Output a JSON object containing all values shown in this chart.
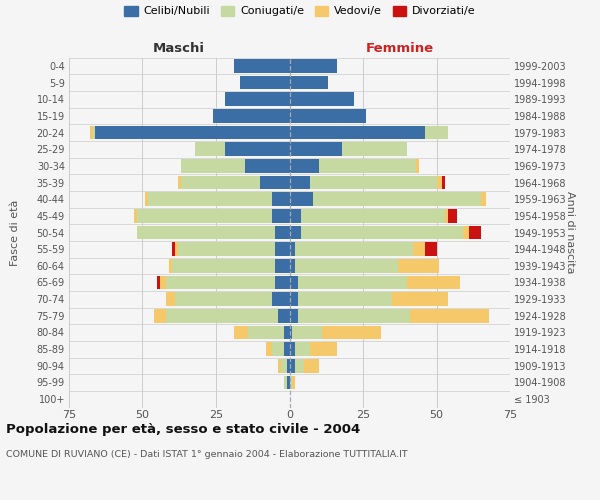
{
  "age_groups": [
    "100+",
    "95-99",
    "90-94",
    "85-89",
    "80-84",
    "75-79",
    "70-74",
    "65-69",
    "60-64",
    "55-59",
    "50-54",
    "45-49",
    "40-44",
    "35-39",
    "30-34",
    "25-29",
    "20-24",
    "15-19",
    "10-14",
    "5-9",
    "0-4"
  ],
  "birth_years": [
    "≤ 1903",
    "1904-1908",
    "1909-1913",
    "1914-1918",
    "1919-1923",
    "1924-1928",
    "1929-1933",
    "1934-1938",
    "1939-1943",
    "1944-1948",
    "1949-1953",
    "1954-1958",
    "1959-1963",
    "1964-1968",
    "1969-1973",
    "1974-1978",
    "1979-1983",
    "1984-1988",
    "1989-1993",
    "1994-1998",
    "1999-2003"
  ],
  "colors": {
    "celibi": "#3a6ea5",
    "coniugati": "#c5d9a0",
    "vedovi": "#f5c96a",
    "divorziati": "#cc1111"
  },
  "male": {
    "celibi": [
      0,
      1,
      1,
      2,
      2,
      4,
      6,
      5,
      5,
      5,
      5,
      6,
      6,
      10,
      15,
      22,
      66,
      26,
      22,
      17,
      19
    ],
    "coniugati": [
      0,
      1,
      2,
      4,
      12,
      38,
      33,
      37,
      35,
      33,
      47,
      46,
      42,
      27,
      22,
      10,
      1,
      0,
      0,
      0,
      0
    ],
    "vedovi": [
      0,
      0,
      1,
      2,
      5,
      4,
      3,
      2,
      1,
      1,
      0,
      1,
      1,
      1,
      0,
      0,
      1,
      0,
      0,
      0,
      0
    ],
    "divorziati": [
      0,
      0,
      0,
      0,
      0,
      0,
      0,
      1,
      0,
      1,
      0,
      0,
      0,
      0,
      0,
      0,
      0,
      0,
      0,
      0,
      0
    ]
  },
  "female": {
    "celibi": [
      0,
      0,
      2,
      2,
      1,
      3,
      3,
      3,
      2,
      2,
      4,
      4,
      8,
      7,
      10,
      18,
      46,
      26,
      22,
      13,
      16
    ],
    "coniugati": [
      0,
      1,
      3,
      5,
      10,
      38,
      32,
      37,
      35,
      40,
      55,
      49,
      57,
      43,
      33,
      22,
      8,
      0,
      0,
      0,
      0
    ],
    "vedovi": [
      0,
      1,
      5,
      9,
      20,
      27,
      19,
      18,
      14,
      4,
      2,
      1,
      2,
      2,
      1,
      0,
      0,
      0,
      0,
      0,
      0
    ],
    "divorziati": [
      0,
      0,
      0,
      0,
      0,
      0,
      0,
      0,
      0,
      4,
      4,
      3,
      0,
      1,
      0,
      0,
      0,
      0,
      0,
      0,
      0
    ]
  },
  "title": "Popolazione per età, sesso e stato civile - 2004",
  "subtitle": "COMUNE DI RUVIANO (CE) - Dati ISTAT 1° gennaio 2004 - Elaborazione TUTTITALIA.IT",
  "xlabel_left": "Maschi",
  "xlabel_right": "Femmine",
  "ylabel_left": "Fasce di età",
  "ylabel_right": "Anni di nascita",
  "xlim": 75,
  "background_color": "#f5f5f5",
  "plot_bg": "#f5f5f5",
  "grid_color": "#cccccc",
  "legend_labels": [
    "Celibi/Nubili",
    "Coniugati/e",
    "Vedovi/e",
    "Divorziati/e"
  ]
}
